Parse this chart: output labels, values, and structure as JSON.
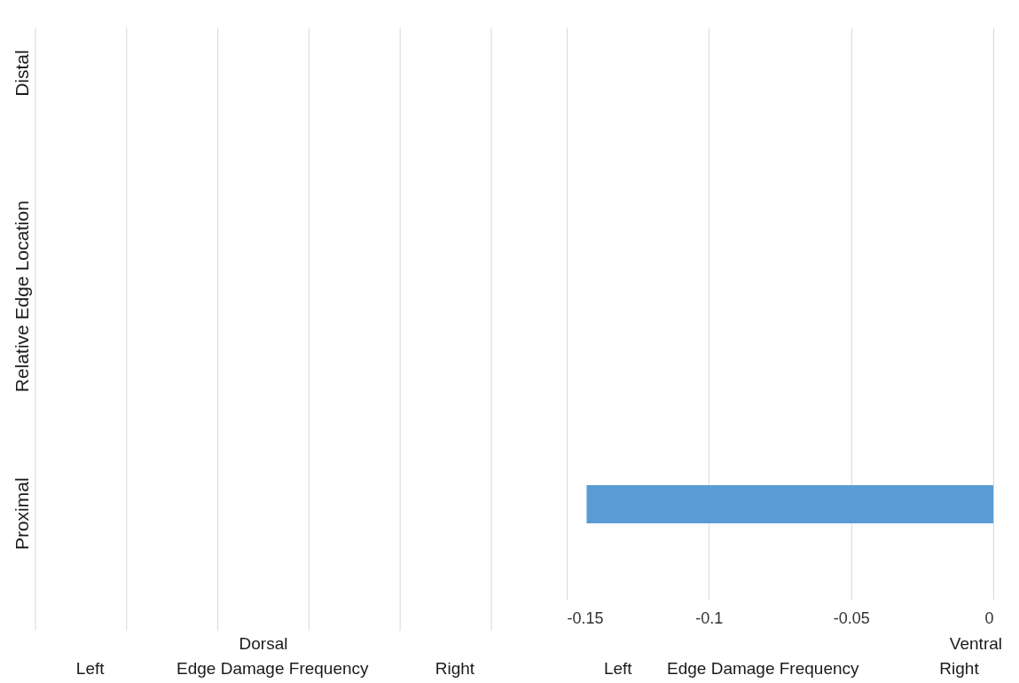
{
  "chart_data": [
    {
      "type": "other",
      "title": "Dorsal",
      "xlabel": "Edge Damage Frequency",
      "ylabel": "Relative Edge Location",
      "annotations": [
        "Left",
        "Right",
        "Proximal",
        "Distal"
      ]
    },
    {
      "type": "bar",
      "orientation": "horizontal",
      "title": "Ventral",
      "xlabel": "Edge Damage Frequency",
      "categories": [
        null,
        null,
        null
      ],
      "values": [
        null,
        null,
        -0.143
      ],
      "color": "#5b9bd5",
      "xlim": [
        -0.15,
        0
      ],
      "xticks": [
        {
          "value": -0.15,
          "label": "-0.15"
        },
        {
          "value": -0.1,
          "label": "-0.1"
        },
        {
          "value": -0.05,
          "label": "-0.05"
        },
        0
      ],
      "grid": "x",
      "tick_labels": "x",
      "annotations": [
        "Left",
        "Right"
      ]
    }
  ]
}
